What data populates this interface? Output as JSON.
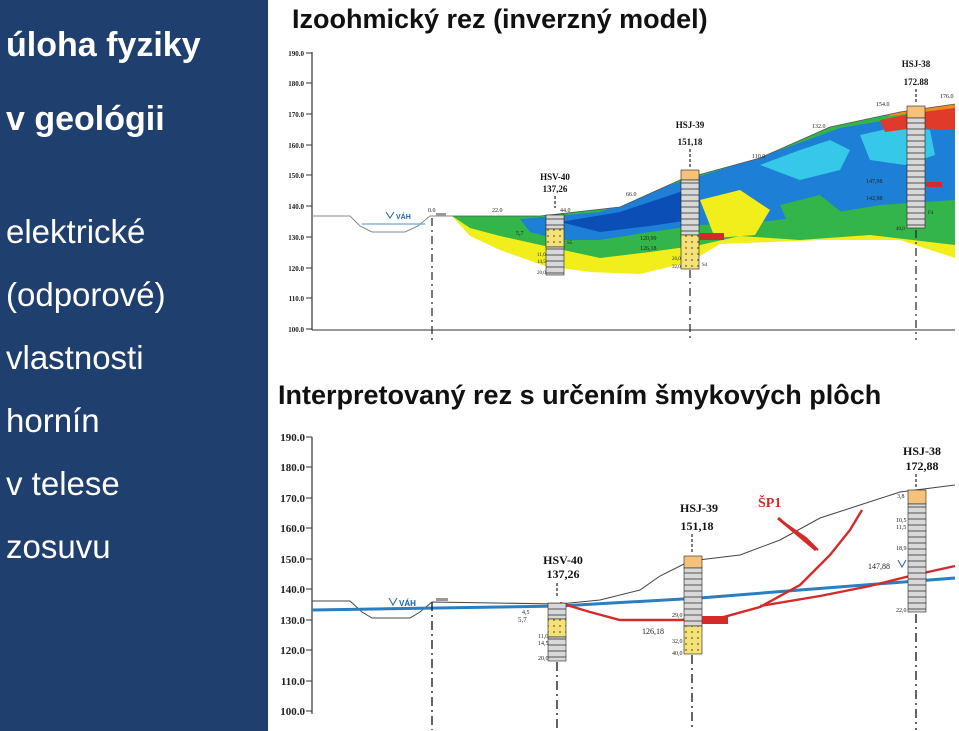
{
  "slide": {
    "title_lines": [
      "úloha fyziky",
      "v geológii"
    ],
    "body_lines": [
      "elektrické",
      "(odporové)",
      "vlastnosti",
      "hornín",
      "v telese",
      "zosuvu"
    ],
    "background_color": "#1f3f6f"
  },
  "top_section": {
    "title": "Izoohmický rez (inverzný model)",
    "y_ticks": [
      "190.0",
      "180.0",
      "170.0",
      "160.0",
      "150.0",
      "140.0",
      "130.0",
      "120.0",
      "110.0",
      "100.0"
    ],
    "river_label": "VÁH",
    "surface_labels": [
      "0.0",
      "22.0",
      "44.0",
      "66.0",
      "110.0",
      "132.0",
      "154.0",
      "176.0"
    ],
    "boreholes": [
      {
        "name": "HSV-40",
        "elevation": "137,26"
      },
      {
        "name": "HSJ-39",
        "elevation": "151,18"
      },
      {
        "name": "HSJ-38",
        "elevation": "172.88"
      }
    ],
    "borehole_notes": [
      "5,7",
      "126,18",
      "120,99",
      "147,98",
      "142,98",
      "11,0",
      "14,5",
      "20,0",
      "26,0",
      "32,0",
      "40,0",
      "S4",
      "S5",
      "F4"
    ]
  },
  "bottom_section": {
    "title": "Interpretovaný rez s určením šmykových plôch",
    "y_ticks": [
      "190.0",
      "180.0",
      "170.0",
      "160.0",
      "150.0",
      "140.0",
      "130.0",
      "120.0",
      "110.0",
      "100.0"
    ],
    "river_label": "VÁH",
    "boreholes": [
      {
        "name": "HSV-40",
        "elevation": "137,26"
      },
      {
        "name": "HSJ-39",
        "elevation": "151,18"
      },
      {
        "name": "HSJ-38",
        "elevation": "172,88"
      }
    ],
    "slip_surface_label": "ŠP1",
    "borehole_notes": [
      "5,7",
      "126,18",
      "147,88",
      "4,5",
      "11,0",
      "14,5",
      "20,0",
      "22,0",
      "29,0",
      "32,0",
      "40,0",
      "3,8",
      "10,5",
      "11,5",
      "18,9"
    ]
  },
  "colors": {
    "groundwater_line": "#2a7fc0",
    "slip_surface": "#d42a2a",
    "terrain_line": "#444444"
  }
}
